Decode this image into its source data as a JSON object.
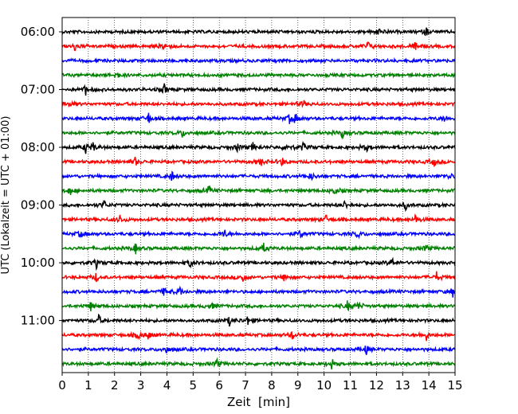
{
  "chart_data": {
    "type": "line",
    "title": "",
    "xlabel": "Zeit  [min]",
    "ylabel": "UTC (Lokalzeit = UTC + 01:00)",
    "xlim": [
      0,
      15
    ],
    "x_ticks": [
      0,
      1,
      2,
      3,
      4,
      5,
      6,
      7,
      8,
      9,
      10,
      11,
      12,
      13,
      14,
      15
    ],
    "y_tick_labels": [
      "06:00",
      "07:00",
      "08:00",
      "09:00",
      "10:00",
      "11:00"
    ],
    "grid": "vertical dotted",
    "trace_interval_minutes": 15,
    "first_trace_start": "06:00",
    "trace_count": 24,
    "trace_colors": [
      "#000000",
      "#ff0000",
      "#0000ff",
      "#008000"
    ],
    "events_minutes": [
      [
        12.1,
        13.9
      ],
      [
        0.5,
        3.9,
        11.7,
        13.5
      ],
      [],
      [
        2.1
      ],
      [
        0.9,
        3.9
      ],
      [
        0.3,
        9.2
      ],
      [
        3.3,
        8.7,
        8.9,
        14.6
      ],
      [
        4.6,
        10.7
      ],
      [
        0.9,
        1.2,
        6.7,
        7.3,
        8.6,
        9.2,
        11.6
      ],
      [
        2.8,
        7.6,
        8.4,
        14.2
      ],
      [
        4.2,
        9.5,
        14.8
      ],
      [
        0.3,
        5.6,
        10.4
      ],
      [
        1.6,
        10.8,
        13.1
      ],
      [
        2.2,
        10.1,
        13.5
      ],
      [
        0.7,
        6.2,
        9.1,
        11.3
      ],
      [
        2.8,
        7.7,
        13.9
      ],
      [
        1.3,
        4.9,
        12.6
      ],
      [
        1.3,
        6.9,
        8.5,
        14.3
      ],
      [
        3.9,
        4.5,
        14.9
      ],
      [
        1.1,
        5.7,
        10.9,
        11.3
      ],
      [
        1.4,
        6.4,
        7.1
      ],
      [
        2.9,
        3.3,
        8.8,
        13.9
      ],
      [
        4.0,
        11.6
      ],
      [
        5.9,
        10.3
      ]
    ]
  }
}
